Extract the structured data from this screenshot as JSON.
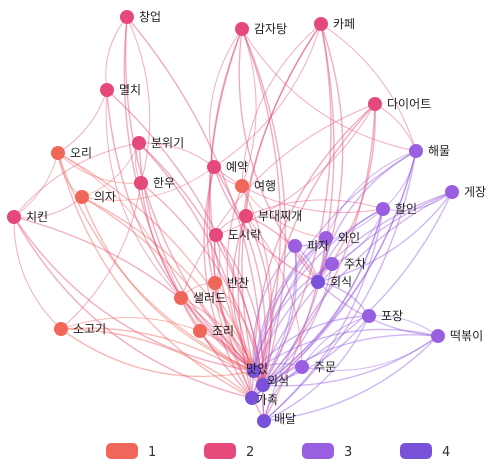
{
  "colors": {
    "1": "#f0675a",
    "2": "#e5497a",
    "3": "#9a5fe0",
    "4": "#7a52d9"
  },
  "legend": [
    {
      "group": "1",
      "label": "1"
    },
    {
      "group": "2",
      "label": "2"
    },
    {
      "group": "3",
      "label": "3"
    },
    {
      "group": "4",
      "label": "4"
    }
  ],
  "nodes": [
    {
      "id": "창업",
      "label": "창업",
      "group": "2"
    },
    {
      "id": "감자탕",
      "label": "감자탕",
      "group": "2"
    },
    {
      "id": "카페",
      "label": "카페",
      "group": "2"
    },
    {
      "id": "멸치",
      "label": "멸치",
      "group": "2"
    },
    {
      "id": "다이어트",
      "label": "다이어트",
      "group": "2"
    },
    {
      "id": "오리",
      "label": "오리",
      "group": "1"
    },
    {
      "id": "분위기",
      "label": "분위기",
      "group": "2"
    },
    {
      "id": "예약",
      "label": "예약",
      "group": "2"
    },
    {
      "id": "해물",
      "label": "해물",
      "group": "3"
    },
    {
      "id": "한우",
      "label": "한우",
      "group": "2"
    },
    {
      "id": "여행",
      "label": "여행",
      "group": "1"
    },
    {
      "id": "게장",
      "label": "게장",
      "group": "3"
    },
    {
      "id": "의자",
      "label": "의자",
      "group": "1"
    },
    {
      "id": "치킨",
      "label": "치킨",
      "group": "2"
    },
    {
      "id": "할인",
      "label": "할인",
      "group": "3"
    },
    {
      "id": "부대찌개",
      "label": "부대찌개",
      "group": "2"
    },
    {
      "id": "도시락",
      "label": "도시락",
      "group": "2"
    },
    {
      "id": "와인",
      "label": "와인",
      "group": "3"
    },
    {
      "id": "피자",
      "label": "피자",
      "group": "3"
    },
    {
      "id": "주차",
      "label": "주차",
      "group": "3"
    },
    {
      "id": "회식",
      "label": "회식",
      "group": "4"
    },
    {
      "id": "반찬",
      "label": "반찬",
      "group": "1"
    },
    {
      "id": "샐러드",
      "label": "샐러드",
      "group": "1"
    },
    {
      "id": "포장",
      "label": "포장",
      "group": "3"
    },
    {
      "id": "소고기",
      "label": "소고기",
      "group": "1"
    },
    {
      "id": "조리",
      "label": "조리",
      "group": "1"
    },
    {
      "id": "떡볶이",
      "label": "떡볶이",
      "group": "3"
    },
    {
      "id": "주문",
      "label": "주문",
      "group": "3"
    },
    {
      "id": "맛있",
      "label": "맛있",
      "group": "4"
    },
    {
      "id": "외식",
      "label": "외식",
      "group": "4"
    },
    {
      "id": "가족",
      "label": "가족",
      "group": "4"
    },
    {
      "id": "배달",
      "label": "배달",
      "group": "4"
    }
  ]
}
